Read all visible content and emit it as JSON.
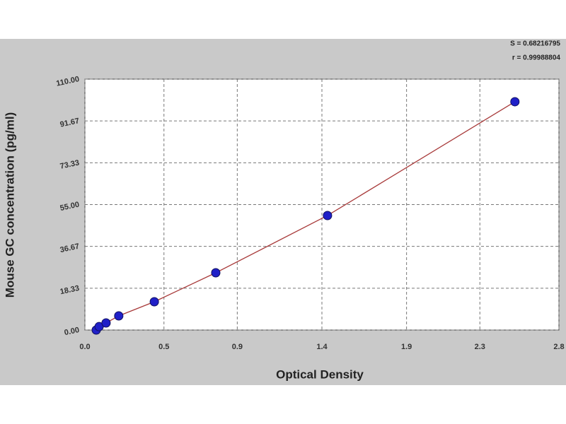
{
  "chart_data": {
    "type": "scatter",
    "annotations": [
      "S = 0.68216795",
      "r = 0.99988804"
    ],
    "x_label": "Optical Density",
    "y_label": "Mouse GC concentration (pg/ml)",
    "series": [
      {
        "color": "#2020c8",
        "line_color": "#a83a3a",
        "x": [
          0.067,
          0.084,
          0.125,
          0.2,
          0.41,
          0.773,
          1.433,
          2.54
        ],
        "values": [
          0,
          1.5,
          3.1,
          6.2,
          12.4,
          25.1,
          50.2,
          100.1
        ]
      }
    ],
    "xlim": [
      0,
      2.8
    ],
    "xticks": [
      {
        "value": 0,
        "label": "0.0"
      },
      {
        "value": 0.467,
        "label": "0.5"
      },
      0.9,
      1.4,
      1.9,
      {
        "value": 2.333,
        "label": "2.3"
      },
      2.8
    ],
    "ylim": [
      0,
      110
    ],
    "yticks": [
      {
        "value": 0,
        "label": "0.00"
      },
      18.33,
      36.67,
      {
        "value": 55,
        "label": "55.00"
      },
      73.33,
      91.67,
      {
        "value": 110,
        "label": "110.00"
      }
    ],
    "grid": true
  }
}
